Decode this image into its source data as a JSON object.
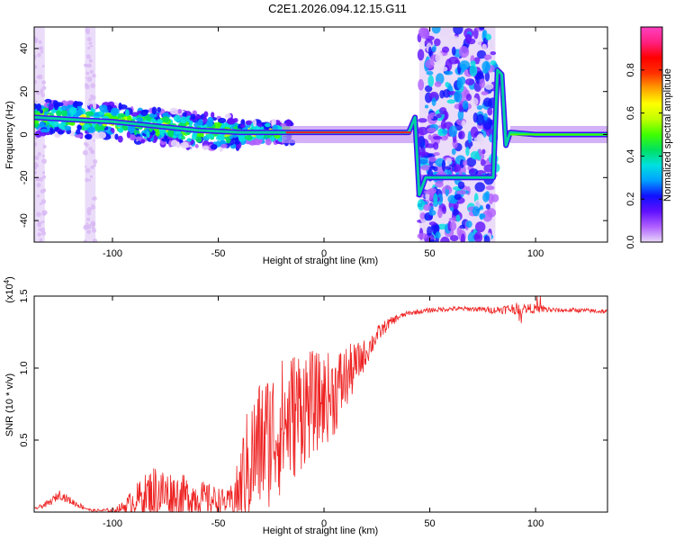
{
  "title": "C2E1.2026.094.12.15.G11",
  "chart_data": [
    {
      "type": "heatmap",
      "title": "C2E1.2026.094.12.15.G11",
      "xlabel": "Height of straight line (km)",
      "ylabel": "Frequency (Hz)",
      "xlim": [
        -137,
        134
      ],
      "ylim": [
        -50,
        50
      ],
      "xticks": [
        -100,
        -50,
        0,
        50,
        100
      ],
      "yticks": [
        -40,
        -20,
        0,
        20,
        40
      ],
      "colorbar": {
        "label": "Normalized spectral amplitude",
        "range": [
          0,
          1
        ],
        "ticks": [
          0.0,
          0.2,
          0.4,
          0.6,
          0.8
        ],
        "colormap": [
          "#e8d8f8",
          "#b060ff",
          "#6010ff",
          "#1010ff",
          "#00a0ff",
          "#00e0e0",
          "#00e060",
          "#40ff00",
          "#c0ff00",
          "#ffff00",
          "#ffa000",
          "#ff3000",
          "#ff0000",
          "#ff2080",
          "#ff40c0"
        ]
      },
      "ridge": {
        "x": [
          -137,
          -120,
          -100,
          -80,
          -60,
          -40,
          -20,
          0,
          20,
          40,
          43,
          45,
          48,
          80,
          82,
          84,
          86,
          88,
          100,
          134
        ],
        "frequency": [
          8,
          7,
          6,
          4,
          2,
          1,
          1,
          1,
          1,
          1,
          8,
          -28,
          -20,
          -20,
          30,
          28,
          -5,
          1,
          0,
          0
        ]
      },
      "noise_bands": [
        [
          45,
          81
        ],
        [
          -137,
          -132
        ],
        [
          -113,
          -108
        ]
      ]
    },
    {
      "type": "line",
      "xlabel": "Height of straight line (km)",
      "ylabel": "SNR (10 * v/v)",
      "exponent_label": "(x10",
      "exponent_power": "4",
      "exponent_close": ")",
      "xlim": [
        -137,
        134
      ],
      "ylim": [
        0,
        1.5
      ],
      "xticks": [
        -100,
        -50,
        0,
        50,
        100
      ],
      "yticks": [
        0.5,
        1.0,
        1.5
      ],
      "series": [
        {
          "name": "SNR",
          "color": "#ee2222",
          "x": [
            -137,
            -130,
            -125,
            -118,
            -110,
            -100,
            -95,
            -90,
            -85,
            -80,
            -75,
            -70,
            -60,
            -50,
            -45,
            -40,
            -38,
            -35,
            -30,
            -25,
            -20,
            -15,
            -10,
            -5,
            0,
            5,
            10,
            15,
            20,
            25,
            30,
            35,
            40,
            50,
            60,
            70,
            80,
            90,
            100,
            110,
            120,
            134
          ],
          "y": [
            0.02,
            0.06,
            0.12,
            0.06,
            0.01,
            0.01,
            0.03,
            0.07,
            0.1,
            0.12,
            0.11,
            0.1,
            0.09,
            0.07,
            0.06,
            0.12,
            0.22,
            0.3,
            0.42,
            0.48,
            0.55,
            0.62,
            0.7,
            0.72,
            0.75,
            0.8,
            0.9,
            1.0,
            1.1,
            1.22,
            1.3,
            1.35,
            1.38,
            1.4,
            1.41,
            1.41,
            1.4,
            1.41,
            1.41,
            1.4,
            1.4,
            1.39
          ],
          "noise": [
            0.01,
            0.03,
            0.04,
            0.03,
            0.01,
            0.02,
            0.05,
            0.12,
            0.18,
            0.25,
            0.22,
            0.2,
            0.16,
            0.12,
            0.1,
            0.3,
            0.45,
            0.55,
            0.6,
            0.62,
            0.6,
            0.58,
            0.55,
            0.45,
            0.4,
            0.38,
            0.3,
            0.2,
            0.12,
            0.08,
            0.05,
            0.03,
            0.02,
            0.02,
            0.02,
            0.02,
            0.03,
            0.05,
            0.04,
            0.02,
            0.02,
            0.02
          ]
        }
      ]
    }
  ]
}
